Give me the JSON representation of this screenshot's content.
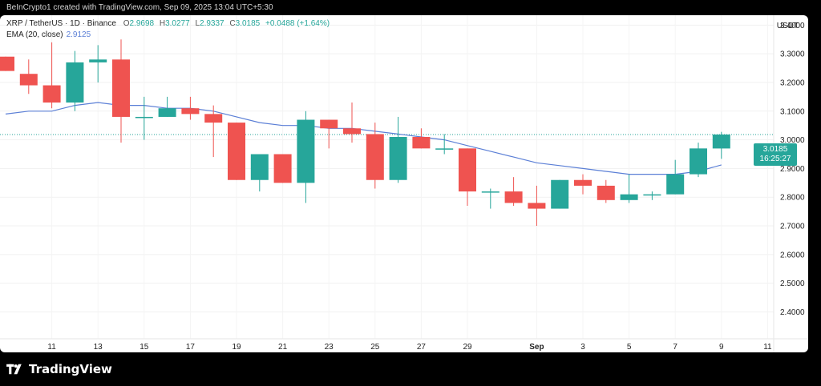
{
  "caption": "BeInCrypto1 created with TradingView.com, Sep 09, 2025 13:04 UTC+5:30",
  "legend": {
    "symbol": "XRP / TetherUS · 1D · Binance",
    "o_label": "O",
    "o": "2.9698",
    "h_label": "H",
    "h": "3.0277",
    "l_label": "L",
    "l": "2.9337",
    "c_label": "C",
    "c": "3.0185",
    "change": "+0.0488 (+1.64%)",
    "ema_label": "EMA (20, close)",
    "ema_value": "2.9125"
  },
  "currency": "USDT",
  "price_tag": {
    "price": "3.0185",
    "countdown": "16:25:27"
  },
  "brand": "TradingView",
  "colors": {
    "up": "#26a69a",
    "down": "#ef5350",
    "ema": "#5b7fd6",
    "last_price_line": "#26a69a"
  },
  "chart_data": {
    "type": "candlestick",
    "title": "",
    "ylim": [
      2.34,
      3.44
    ],
    "y_ticks": [
      "3.4000",
      "3.3000",
      "3.2000",
      "3.1000",
      "3.0000",
      "2.9000",
      "2.8000",
      "2.7000",
      "2.6000",
      "2.5000",
      "2.4000"
    ],
    "x_ticks": [
      {
        "i": 2,
        "label": "11"
      },
      {
        "i": 4,
        "label": "13"
      },
      {
        "i": 6,
        "label": "15"
      },
      {
        "i": 8,
        "label": "17"
      },
      {
        "i": 10,
        "label": "19"
      },
      {
        "i": 12,
        "label": "21"
      },
      {
        "i": 14,
        "label": "23"
      },
      {
        "i": 16,
        "label": "25"
      },
      {
        "i": 18,
        "label": "27"
      },
      {
        "i": 20,
        "label": "29"
      },
      {
        "i": 23,
        "label": "Sep"
      },
      {
        "i": 25,
        "label": "3"
      },
      {
        "i": 27,
        "label": "5"
      },
      {
        "i": 29,
        "label": "7"
      },
      {
        "i": 31,
        "label": "9"
      },
      {
        "i": 33,
        "label": "11"
      }
    ],
    "candles": [
      {
        "o": 3.29,
        "h": 3.29,
        "l": 3.24,
        "c": 3.24
      },
      {
        "o": 3.23,
        "h": 3.28,
        "l": 3.16,
        "c": 3.19
      },
      {
        "o": 3.19,
        "h": 3.34,
        "l": 3.11,
        "c": 3.13
      },
      {
        "o": 3.13,
        "h": 3.31,
        "l": 3.1,
        "c": 3.27
      },
      {
        "o": 3.27,
        "h": 3.33,
        "l": 3.2,
        "c": 3.28
      },
      {
        "o": 3.28,
        "h": 3.35,
        "l": 2.99,
        "c": 3.08
      },
      {
        "o": 3.08,
        "h": 3.15,
        "l": 3.0,
        "c": 3.08
      },
      {
        "o": 3.08,
        "h": 3.15,
        "l": 3.08,
        "c": 3.11
      },
      {
        "o": 3.11,
        "h": 3.15,
        "l": 3.07,
        "c": 3.09
      },
      {
        "o": 3.09,
        "h": 3.12,
        "l": 2.94,
        "c": 3.06
      },
      {
        "o": 3.06,
        "h": 3.06,
        "l": 2.86,
        "c": 2.86
      },
      {
        "o": 2.86,
        "h": 2.95,
        "l": 2.82,
        "c": 2.95
      },
      {
        "o": 2.95,
        "h": 2.95,
        "l": 2.85,
        "c": 2.85
      },
      {
        "o": 2.85,
        "h": 3.1,
        "l": 2.78,
        "c": 3.07
      },
      {
        "o": 3.07,
        "h": 3.07,
        "l": 2.97,
        "c": 3.04
      },
      {
        "o": 3.04,
        "h": 3.13,
        "l": 2.99,
        "c": 3.02
      },
      {
        "o": 3.02,
        "h": 3.06,
        "l": 2.83,
        "c": 2.86
      },
      {
        "o": 2.86,
        "h": 3.08,
        "l": 2.85,
        "c": 3.01
      },
      {
        "o": 3.01,
        "h": 3.04,
        "l": 2.97,
        "c": 2.97
      },
      {
        "o": 2.97,
        "h": 3.02,
        "l": 2.95,
        "c": 2.97
      },
      {
        "o": 2.97,
        "h": 2.97,
        "l": 2.77,
        "c": 2.82
      },
      {
        "o": 2.82,
        "h": 2.83,
        "l": 2.76,
        "c": 2.82
      },
      {
        "o": 2.82,
        "h": 2.87,
        "l": 2.77,
        "c": 2.78
      },
      {
        "o": 2.78,
        "h": 2.84,
        "l": 2.7,
        "c": 2.76
      },
      {
        "o": 2.76,
        "h": 2.86,
        "l": 2.76,
        "c": 2.86
      },
      {
        "o": 2.86,
        "h": 2.88,
        "l": 2.81,
        "c": 2.84
      },
      {
        "o": 2.84,
        "h": 2.86,
        "l": 2.78,
        "c": 2.79
      },
      {
        "o": 2.79,
        "h": 2.88,
        "l": 2.78,
        "c": 2.81
      },
      {
        "o": 2.81,
        "h": 2.82,
        "l": 2.79,
        "c": 2.81
      },
      {
        "o": 2.81,
        "h": 2.93,
        "l": 2.81,
        "c": 2.88
      },
      {
        "o": 2.88,
        "h": 2.99,
        "l": 2.87,
        "c": 2.97
      },
      {
        "o": 2.9698,
        "h": 3.0277,
        "l": 2.9337,
        "c": 3.0185
      }
    ],
    "ema": [
      3.09,
      3.1,
      3.1,
      3.12,
      3.13,
      3.12,
      3.12,
      3.11,
      3.11,
      3.1,
      3.08,
      3.06,
      3.05,
      3.05,
      3.04,
      3.04,
      3.03,
      3.02,
      3.01,
      3.0,
      2.98,
      2.96,
      2.94,
      2.92,
      2.91,
      2.9,
      2.89,
      2.88,
      2.88,
      2.88,
      2.89,
      2.9125
    ],
    "last_price": 3.0185
  }
}
